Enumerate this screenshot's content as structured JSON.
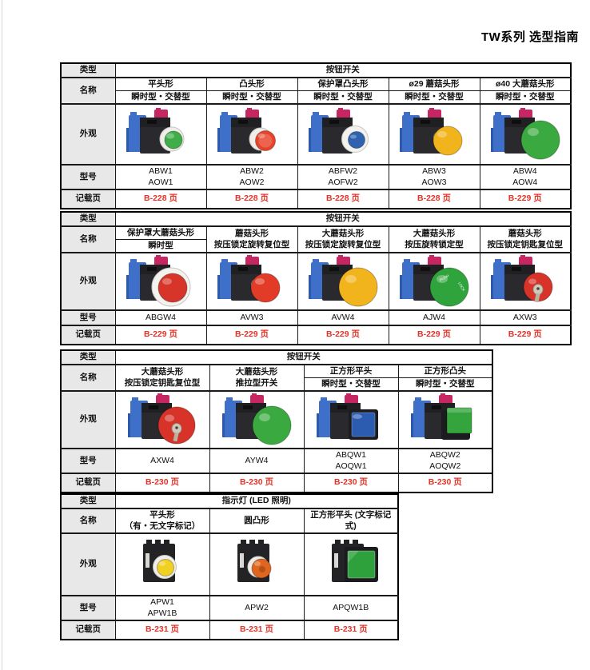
{
  "page": {
    "title": "TW系列 选型指南"
  },
  "row_labels": {
    "type": "类型",
    "name": "名称",
    "appearance": "外观",
    "model": "型号",
    "page": "记载页"
  },
  "tables": [
    {
      "category": "按钮开关",
      "columns": [
        {
          "name": "平头形",
          "subtype": "瞬时型・交替型",
          "model1": "ABW1",
          "model2": "AOW1",
          "page": "B-228 页",
          "image": {
            "icon": "pushbutton-flush-icon",
            "style": "flat",
            "color": "#3fae49"
          }
        },
        {
          "name": "凸头形",
          "subtype": "瞬时型・交替型",
          "model1": "ABW2",
          "model2": "AOW2",
          "page": "B-228 页",
          "image": {
            "icon": "pushbutton-extended-icon",
            "style": "dome",
            "color": "#e8432a"
          }
        },
        {
          "name": "保护罩凸头形",
          "subtype": "瞬时型・交替型",
          "model1": "ABFW2",
          "model2": "AOFW2",
          "page": "B-228 页",
          "image": {
            "icon": "pushbutton-guarded-icon",
            "style": "guard-dome",
            "color": "#2f63b0"
          }
        },
        {
          "name": "ø29 蘑菇头形",
          "subtype": "瞬时型・交替型",
          "model1": "ABW3",
          "model2": "AOW3",
          "page": "B-228 页",
          "image": {
            "icon": "pushbutton-mushroom-icon",
            "style": "mushroom",
            "color": "#f2b41c"
          }
        },
        {
          "name": "ø40 大蘑菇头形",
          "subtype": "瞬时型・交替型",
          "model1": "ABW4",
          "model2": "AOW4",
          "page": "B-229 页",
          "image": {
            "icon": "pushbutton-large-mushroom-icon",
            "style": "mushroom-large",
            "color": "#3aa93f"
          }
        }
      ]
    },
    {
      "category": "按钮开关",
      "columns": [
        {
          "name": "保护罩大蘑菇头形",
          "subtype": "瞬时型",
          "model1": "ABGW4",
          "page": "B-229 页",
          "image": {
            "icon": "mushroom-with-guard-icon",
            "style": "mushroom-guard",
            "color": "#d7342a"
          }
        },
        {
          "name": "蘑菇头形",
          "name2": "按压锁定旋转复位型",
          "model1": "AVW3",
          "page": "B-229 页",
          "image": {
            "icon": "push-lock-turn-reset-icon",
            "style": "mushroom",
            "color": "#e23c28"
          }
        },
        {
          "name": "大蘑菇头形",
          "name2": "按压锁定旋转复位型",
          "model1": "AVW4",
          "page": "B-229 页",
          "image": {
            "icon": "push-lock-turn-reset-large-icon",
            "style": "mushroom-large",
            "color": "#f2b41c"
          }
        },
        {
          "name": "大蘑菇头形",
          "name2": "按压旋转锁定型",
          "model1": "AJW4",
          "page": "B-229 页",
          "image": {
            "icon": "push-turn-lock-icon",
            "style": "mushroom-lock",
            "color": "#2fa43c"
          }
        },
        {
          "name": "蘑菇头形",
          "name2": "按压锁定钥匙复位型",
          "model1": "AXW3",
          "page": "B-229 页",
          "image": {
            "icon": "key-reset-mushroom-icon",
            "style": "mushroom-key",
            "color": "#d73328"
          }
        }
      ]
    },
    {
      "category": "按钮开关",
      "columns": [
        {
          "name": "大蘑菇头形",
          "name2": "按压锁定钥匙复位型",
          "model1": "AXW4",
          "page": "B-230 页",
          "image": {
            "icon": "key-reset-large-mushroom-icon",
            "style": "mushroom-key-large",
            "color": "#d73328"
          }
        },
        {
          "name": "大蘑菇头形",
          "name2": "推拉型开关",
          "model1": "AYW4",
          "page": "B-230 页",
          "image": {
            "icon": "push-pull-mushroom-icon",
            "style": "mushroom-large",
            "color": "#3aa93f"
          }
        },
        {
          "name": "正方形平头",
          "subtype": "瞬时型・交替型",
          "model1": "ABQW1",
          "model2": "AOQW1",
          "page": "B-230 页",
          "image": {
            "icon": "square-flush-pushbutton-icon",
            "style": "square-flat",
            "color": "#2b5cb0"
          }
        },
        {
          "name": "正方形凸头",
          "subtype": "瞬时型・交替型",
          "model1": "ABQW2",
          "model2": "AOQW2",
          "page": "B-230 页",
          "image": {
            "icon": "square-extended-pushbutton-icon",
            "style": "square-raised",
            "color": "#33a53c"
          }
        }
      ]
    },
    {
      "category": "指示灯 (LED 照明)",
      "columns": [
        {
          "name": "平头形",
          "name2": "（有・无文字标记）",
          "model1": "APW1",
          "model2": "APW1B",
          "page": "B-231 页",
          "image": {
            "icon": "pilot-light-flush-icon",
            "style": "pilot-dome",
            "color": "#f0d020"
          }
        },
        {
          "name": "圆凸形",
          "model1": "APW2",
          "page": "B-231 页",
          "image": {
            "icon": "pilot-light-dome-icon",
            "style": "pilot-dome-raised",
            "color": "#e0661f"
          }
        },
        {
          "name": "正方形平头 (文字标记式)",
          "model1": "APQW1B",
          "page": "B-231 页",
          "image": {
            "icon": "pilot-light-square-icon",
            "style": "pilot-square",
            "color": "#2ea13c"
          }
        }
      ]
    }
  ]
}
